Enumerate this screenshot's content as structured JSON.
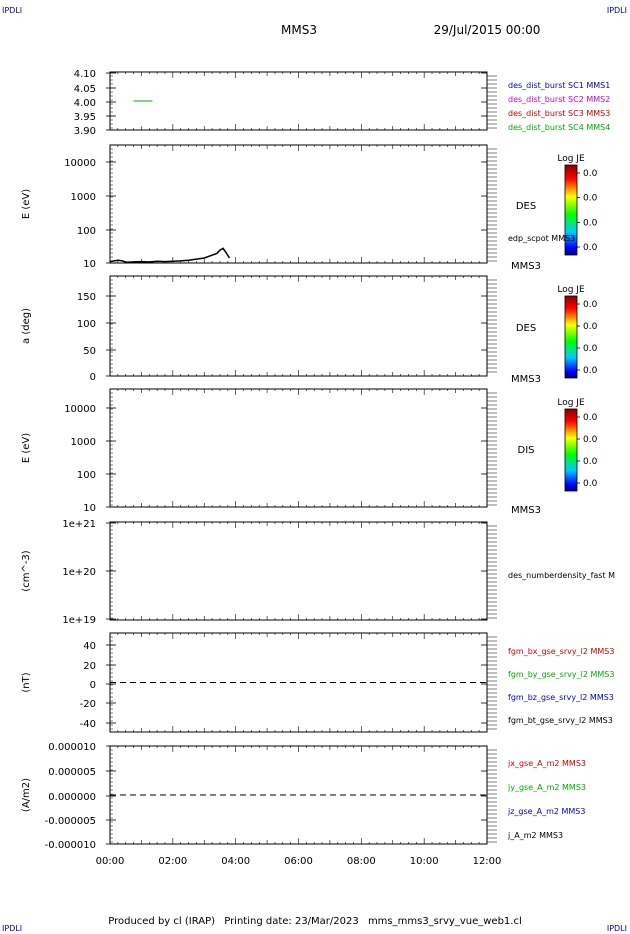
{
  "header": {
    "corner_left": "IPDLI",
    "corner_right": "IPDLI",
    "spacecraft": "MMS3",
    "datetime": "29/Jul/2015 00:00"
  },
  "footer": {
    "produced_by": "Produced by cl (IRAP)",
    "printing_date": "Printing date: 23/Mar/2023",
    "script_name": "mms_mms3_srvy_vue_web1.cl",
    "corner_left": "IPDLI",
    "corner_right": "IPDLI"
  },
  "colors": {
    "mms1": "#0000cc",
    "mms2": "#cc00cc",
    "mms3": "#cc0000",
    "mms4": "#00aa00",
    "bx": "#cc0000",
    "by": "#00aa00",
    "bz": "#0000cc",
    "bt": "#000000"
  },
  "chart_data": [
    {
      "type": "line",
      "panel": "availability",
      "ylabel": "",
      "ylim": [
        3.9,
        4.1
      ],
      "yticks": [
        "4.10",
        "4.05",
        "4.00",
        "3.95",
        "3.90"
      ],
      "series": [
        {
          "name": "des_dist_burst SC1 MMS1",
          "color": "#0000cc",
          "segments": []
        },
        {
          "name": "des_dist_burst SC2 MMS2",
          "color": "#cc00cc",
          "segments": []
        },
        {
          "name": "des_dist_burst SC3 MMS3",
          "color": "#cc0000",
          "segments": []
        },
        {
          "name": "des_dist_burst SC4 MMS4",
          "color": "#00aa00",
          "segments": [
            {
              "t_start": 0.75,
              "t_end": 1.35,
              "value": 4.0
            }
          ]
        }
      ]
    },
    {
      "type": "heatmap",
      "panel": "des-energy",
      "ylabel": "E (eV)",
      "scale": "log",
      "ylim": [
        10,
        30000
      ],
      "yticks": [
        "10000",
        "1000",
        "100",
        "10"
      ],
      "label": "DES",
      "sc_label": "MMS3",
      "colorbar": {
        "title": "Log JE",
        "ticks": [
          "0.0",
          "0.0",
          "0.0",
          "0.0"
        ]
      },
      "overlay": {
        "name": "edp_scpot MMS3",
        "x": [
          0.0,
          0.25,
          0.4,
          0.5,
          0.75,
          1.0,
          1.25,
          1.5,
          1.75,
          2.0,
          2.25,
          2.5,
          2.75,
          3.0,
          3.25,
          3.4,
          3.5,
          3.6,
          3.7,
          3.8
        ],
        "y": [
          11,
          12,
          11.5,
          10.5,
          10.8,
          11,
          10.7,
          11.2,
          11,
          11.2,
          11.5,
          12,
          13,
          14,
          17,
          19,
          24,
          27,
          20,
          14
        ]
      }
    },
    {
      "type": "heatmap",
      "panel": "des-pitch",
      "ylabel": "a (deg)",
      "scale": "linear",
      "ylim": [
        0,
        180
      ],
      "yticks": [
        "150",
        "100",
        "50",
        "0"
      ],
      "label": "DES",
      "sc_label": "MMS3",
      "colorbar": {
        "title": "Log JE",
        "ticks": [
          "0.0",
          "0.0",
          "0.0",
          "0.0"
        ]
      }
    },
    {
      "type": "heatmap",
      "panel": "dis-energy",
      "ylabel": "E (eV)",
      "scale": "log",
      "ylim": [
        10,
        30000
      ],
      "yticks": [
        "10000",
        "1000",
        "100",
        "10"
      ],
      "label": "DIS",
      "sc_label": "MMS3",
      "colorbar": {
        "title": "Log JE",
        "ticks": [
          "0.0",
          "0.0",
          "0.0",
          "0.0"
        ]
      }
    },
    {
      "type": "line",
      "panel": "density",
      "ylabel": "(cm^-3)",
      "scale": "log",
      "ylim": [
        1e+19,
        1e+21
      ],
      "yticks": [
        "1e+21",
        "1e+20",
        "1e+19"
      ],
      "series": [
        {
          "name": "des_numberdensity_fast M",
          "color": "#000000",
          "x": [],
          "y": []
        }
      ]
    },
    {
      "type": "line",
      "panel": "magnetic-field",
      "ylabel": "(nT)",
      "ylim": [
        -50,
        50
      ],
      "yticks": [
        "40",
        "20",
        "0",
        "-20",
        "-40"
      ],
      "zero_line": true,
      "series": [
        {
          "name": "fgm_bx_gse_srvy_l2 MMS3",
          "color": "#cc0000",
          "x": [],
          "y": []
        },
        {
          "name": "fgm_by_gse_srvy_l2 MMS3",
          "color": "#00aa00",
          "x": [],
          "y": []
        },
        {
          "name": "fgm_bz_gse_srvy_l2 MMS3",
          "color": "#0000cc",
          "x": [],
          "y": []
        },
        {
          "name": "fgm_bt_gse_srvy_l2 MMS3",
          "color": "#000000",
          "x": [],
          "y": []
        }
      ]
    },
    {
      "type": "line",
      "panel": "current-density",
      "ylabel": "(A/m2)",
      "ylim": [
        -1e-05,
        1e-05
      ],
      "yticks": [
        "0.000010",
        "0.000005",
        "0.000000",
        "-0.000005",
        "-0.000010"
      ],
      "zero_line": true,
      "series": [
        {
          "name": "jx_gse_A_m2 MMS3",
          "color": "#cc0000",
          "x": [],
          "y": []
        },
        {
          "name": "jy_gse_A_m2 MMS3",
          "color": "#00aa00",
          "x": [],
          "y": []
        },
        {
          "name": "jz_gse_A_m2 MMS3",
          "color": "#0000cc",
          "x": [],
          "y": []
        },
        {
          "name": "j_A_m2 MMS3",
          "color": "#000000",
          "x": [],
          "y": []
        }
      ]
    }
  ],
  "x_axis": {
    "unit": "hours",
    "xlim": [
      0,
      12
    ],
    "tick_values": [
      0,
      2,
      4,
      6,
      8,
      10,
      12
    ],
    "tick_labels": [
      "00:00",
      "02:00",
      "04:00",
      "06:00",
      "08:00",
      "10:00",
      "12:00"
    ]
  }
}
